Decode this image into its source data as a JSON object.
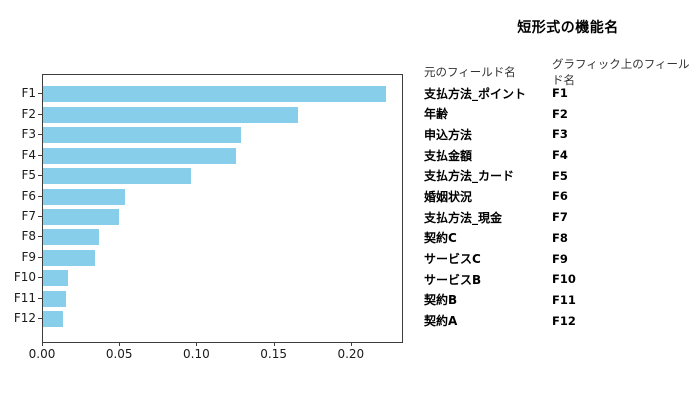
{
  "figure_title": "短形式の機能名",
  "chart_data": {
    "type": "bar",
    "orientation": "horizontal",
    "title": "",
    "xlabel": "",
    "ylabel": "",
    "categories": [
      "F1",
      "F2",
      "F3",
      "F4",
      "F5",
      "F6",
      "F7",
      "F8",
      "F9",
      "F10",
      "F11",
      "F12"
    ],
    "values": [
      0.222,
      0.165,
      0.128,
      0.125,
      0.096,
      0.053,
      0.049,
      0.036,
      0.034,
      0.016,
      0.015,
      0.013
    ],
    "xlim": [
      0,
      0.2325
    ],
    "xticks": [
      0.0,
      0.05,
      0.1,
      0.15,
      0.2
    ],
    "xtick_labels": [
      "0.00",
      "0.05",
      "0.10",
      "0.15",
      "0.20"
    ],
    "bar_color": "#87CEEB",
    "grid": false,
    "legend_position": "none"
  },
  "legend_table": {
    "title": "短形式の機能名",
    "headers": [
      "元のフィールド名",
      "グラフィック上のフィールド名"
    ],
    "rows": [
      {
        "name": "支払方法_ポイント",
        "code": "F1"
      },
      {
        "name": "年齢",
        "code": "F2"
      },
      {
        "name": "申込方法",
        "code": "F3"
      },
      {
        "name": "支払金額",
        "code": "F4"
      },
      {
        "name": "支払方法_カード",
        "code": "F5"
      },
      {
        "name": "婚姻状況",
        "code": "F6"
      },
      {
        "name": "支払方法_現金",
        "code": "F7"
      },
      {
        "name": "契約C",
        "code": "F8"
      },
      {
        "name": "サービスC",
        "code": "F9"
      },
      {
        "name": "サービスB",
        "code": "F10"
      },
      {
        "name": "契約B",
        "code": "F11"
      },
      {
        "name": "契約A",
        "code": "F12"
      }
    ]
  }
}
